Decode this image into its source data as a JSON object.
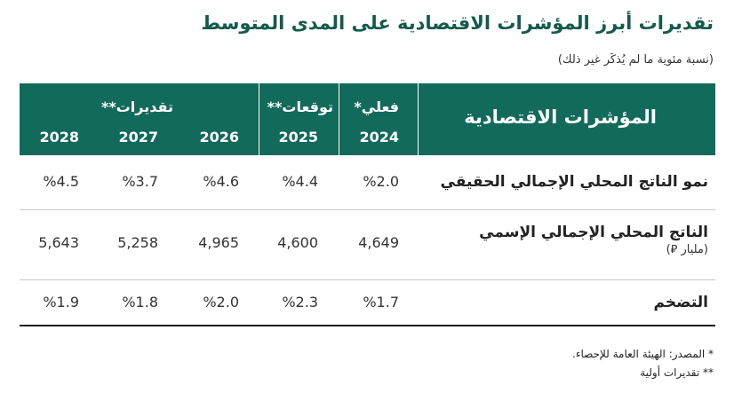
{
  "title": "تقديرات أبرز المؤشرات الاقتصادية على المدى المتوسط",
  "subtitle": "(نسبة مئوية ما لم يُذكَر غير ذلك)",
  "table": {
    "header_main": "المؤشرات الاقتصادية",
    "group_actual": "فعلي*",
    "group_forecast": "توقعات**",
    "group_estimates": "تقديرات**",
    "years": [
      "2024",
      "2025",
      "2026",
      "2027",
      "2028"
    ],
    "rows": [
      {
        "label": "نمو الناتج المحلي الإجمالي الحقيقي",
        "sub": "",
        "values": [
          "%2.0",
          "%4.4",
          "%4.6",
          "%3.7",
          "%4.5"
        ]
      },
      {
        "label": "الناتج المحلي الإجمالي الإسمي",
        "sub": "(مليار ⃁)",
        "values": [
          "4,649",
          "4,600",
          "4,965",
          "5,258",
          "5,643"
        ]
      },
      {
        "label": "التضخم",
        "sub": "",
        "values": [
          "%1.7",
          "%2.3",
          "%2.0",
          "%1.8",
          "%1.9"
        ]
      }
    ]
  },
  "notes": {
    "source": "* المصدر: الهيئة العامة للإحصاء.",
    "prelim": "** تقديرات أولية"
  }
}
